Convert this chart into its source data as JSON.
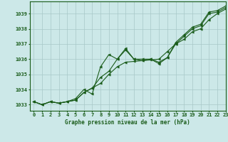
{
  "xlabel": "Graphe pression niveau de la mer (hPa)",
  "ylim": [
    1032.6,
    1039.8
  ],
  "xlim": [
    -0.5,
    23
  ],
  "yticks": [
    1033,
    1034,
    1035,
    1036,
    1037,
    1038,
    1039
  ],
  "xticks": [
    0,
    1,
    2,
    3,
    4,
    5,
    6,
    7,
    8,
    9,
    10,
    11,
    12,
    13,
    14,
    15,
    16,
    17,
    18,
    19,
    20,
    21,
    22,
    23
  ],
  "bg_color": "#cce8e8",
  "line_color": "#1a5c1a",
  "grid_color": "#a8c8c8",
  "series1": [
    1033.2,
    1033.0,
    1033.2,
    1033.1,
    1033.2,
    1033.3,
    1033.8,
    1034.1,
    1034.8,
    1035.2,
    1036.0,
    1036.7,
    1036.0,
    1035.9,
    1036.0,
    1035.7,
    1036.1,
    1037.0,
    1037.5,
    1038.0,
    1038.2,
    1039.0,
    1039.1,
    1039.4
  ],
  "series2": [
    1033.2,
    1033.0,
    1033.2,
    1033.1,
    1033.2,
    1033.4,
    1034.0,
    1033.7,
    1035.5,
    1036.3,
    1036.0,
    1036.6,
    1036.0,
    1036.0,
    1036.0,
    1035.8,
    1036.1,
    1037.1,
    1037.6,
    1038.1,
    1038.3,
    1039.1,
    1039.2,
    1039.5
  ],
  "series3": [
    1033.2,
    1033.0,
    1033.2,
    1033.1,
    1033.2,
    1033.3,
    1033.8,
    1034.1,
    1034.4,
    1035.0,
    1035.5,
    1035.8,
    1035.85,
    1035.9,
    1035.95,
    1036.0,
    1036.5,
    1037.0,
    1037.3,
    1037.8,
    1038.0,
    1038.6,
    1039.0,
    1039.3
  ],
  "tick_fontsize": 5.0,
  "xlabel_fontsize": 5.5,
  "linewidth": 0.8,
  "markersize": 2.5
}
